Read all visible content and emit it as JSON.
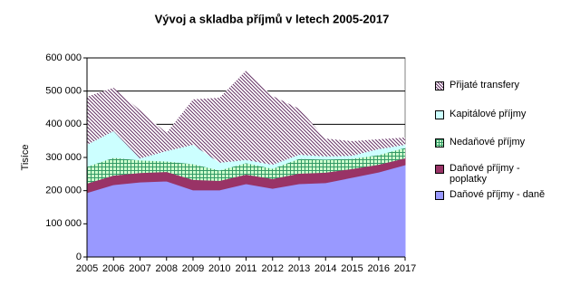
{
  "chart_data": {
    "type": "stacked-area",
    "title": "Vývoj a skladba příjmů v letech 2005-2017",
    "y_label": "Tisíce",
    "categories": [
      "2005",
      "2006",
      "2007",
      "2008",
      "2009",
      "2010",
      "2011",
      "2012",
      "2013",
      "2014",
      "2015",
      "2016",
      "2017"
    ],
    "series": [
      {
        "name": "Daňové příjmy - daně",
        "color": "#9999ff",
        "hatch": "none",
        "values": [
          194000,
          218000,
          226000,
          229000,
          202000,
          202000,
          221000,
          207000,
          221000,
          224000,
          240000,
          256000,
          278000
        ]
      },
      {
        "name": "Daňové příjmy - poplatky",
        "color": "#993366",
        "hatch": "none",
        "values": [
          27000,
          27000,
          27000,
          27000,
          30000,
          27000,
          27000,
          28000,
          30000,
          30000,
          25000,
          22000,
          19000
        ]
      },
      {
        "name": "Nedaňové příjmy",
        "color": "#339966",
        "hatch": "grid",
        "values": [
          52000,
          55000,
          39000,
          33000,
          49000,
          33000,
          36000,
          32000,
          46000,
          41000,
          32000,
          30000,
          33000
        ]
      },
      {
        "name": "Kapitálové příjmy",
        "color": "#ccffff",
        "hatch": "none",
        "values": [
          65000,
          79000,
          5000,
          30000,
          57000,
          22000,
          8000,
          11000,
          11000,
          8000,
          8000,
          17000,
          8000
        ]
      },
      {
        "name": "Přijaté transfery",
        "color": "#663366",
        "hatch": "diagonal",
        "values": [
          145000,
          131000,
          145000,
          55000,
          137000,
          196000,
          270000,
          207000,
          139000,
          54000,
          44000,
          30000,
          22000
        ]
      }
    ],
    "ylim": [
      0,
      600000
    ],
    "yticks": [
      0,
      {
        "value": 100000,
        "label": "100 000"
      },
      {
        "value": 200000,
        "label": "200 000"
      },
      {
        "value": 300000,
        "label": "300 000"
      },
      {
        "value": 400000,
        "label": "400 000"
      },
      {
        "value": 500000,
        "label": "500 000"
      },
      {
        "value": 600000,
        "label": "600 000"
      }
    ],
    "grid": true,
    "legend": "right"
  }
}
